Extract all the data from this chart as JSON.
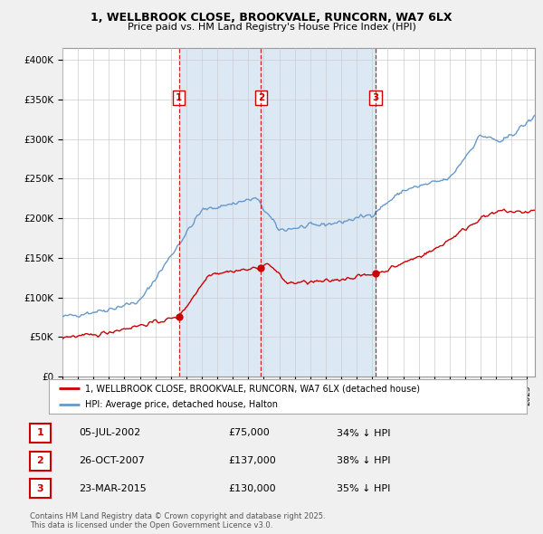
{
  "title": "1, WELLBROOK CLOSE, BROOKVALE, RUNCORN, WA7 6LX",
  "subtitle": "Price paid vs. HM Land Registry's House Price Index (HPI)",
  "ylabel_ticks": [
    "£0",
    "£50K",
    "£100K",
    "£150K",
    "£200K",
    "£250K",
    "£300K",
    "£350K",
    "£400K"
  ],
  "ytick_values": [
    0,
    50000,
    100000,
    150000,
    200000,
    250000,
    300000,
    350000,
    400000
  ],
  "ylim": [
    0,
    415000
  ],
  "xlim_start": 1995.0,
  "xlim_end": 2025.5,
  "hpi_color": "#6699cc",
  "price_color": "#cc0000",
  "vline_color": "#cc0000",
  "shade_color": "#dde8f5",
  "bg_color": "#f0f0f0",
  "plot_bg_color": "#ffffff",
  "grid_color": "#cccccc",
  "transactions": [
    {
      "num": 1,
      "date": "05-JUL-2002",
      "price": 75000,
      "pct": "34%",
      "year_x": 2002.51
    },
    {
      "num": 2,
      "date": "26-OCT-2007",
      "price": 137000,
      "pct": "38%",
      "year_x": 2007.82
    },
    {
      "num": 3,
      "date": "23-MAR-2015",
      "price": 130000,
      "pct": "35%",
      "year_x": 2015.23
    }
  ],
  "legend_line1": "1, WELLBROOK CLOSE, BROOKVALE, RUNCORN, WA7 6LX (detached house)",
  "legend_line2": "HPI: Average price, detached house, Halton",
  "footnote": "Contains HM Land Registry data © Crown copyright and database right 2025.\nThis data is licensed under the Open Government Licence v3.0.",
  "table_rows": [
    {
      "num": "1",
      "date": "05-JUL-2002",
      "price": "£75,000",
      "pct": "34% ↓ HPI"
    },
    {
      "num": "2",
      "date": "26-OCT-2007",
      "price": "£137,000",
      "pct": "38% ↓ HPI"
    },
    {
      "num": "3",
      "date": "23-MAR-2015",
      "price": "£130,000",
      "pct": "35% ↓ HPI"
    }
  ]
}
